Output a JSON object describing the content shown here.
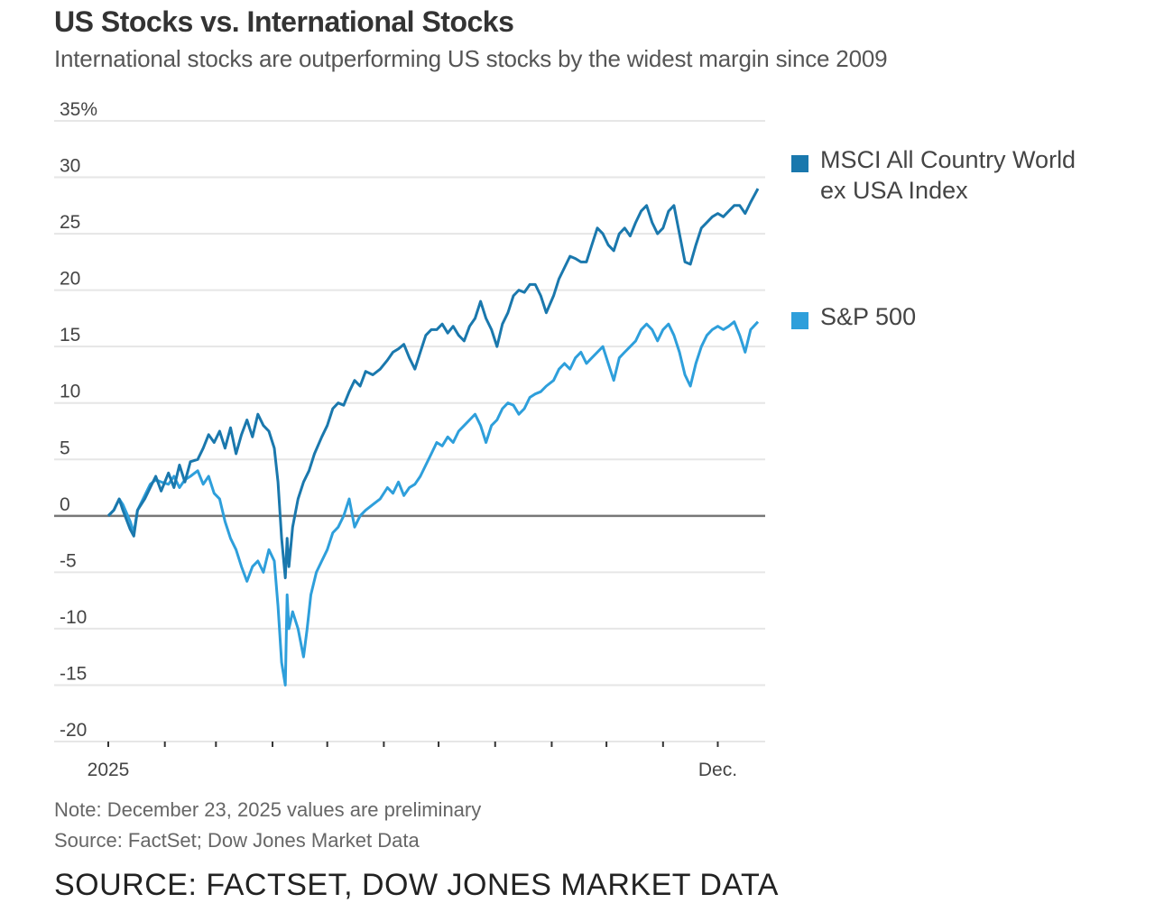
{
  "colors": {
    "msci": "#1a78ad",
    "sp500": "#2e9fdb",
    "grid": "#e6e6e6",
    "zero": "#777777"
  },
  "chart_data": {
    "type": "line",
    "title": "US Stocks vs. International Stocks",
    "subtitle": "International stocks are outperforming US stocks by the widest margin since 2009",
    "ylabel": "",
    "xlabel": "",
    "ylim": [
      -20,
      35
    ],
    "y_ticks": [
      {
        "value": 35,
        "label": "35%"
      },
      {
        "value": 30,
        "label": "30"
      },
      {
        "value": 25,
        "label": "25"
      },
      {
        "value": 20,
        "label": "20"
      },
      {
        "value": 15,
        "label": "15"
      },
      {
        "value": 10,
        "label": "10"
      },
      {
        "value": 5,
        "label": "5"
      },
      {
        "value": 0,
        "label": "0"
      },
      {
        "value": -5,
        "label": "-5"
      },
      {
        "value": -10,
        "label": "-10"
      },
      {
        "value": -15,
        "label": "-15"
      },
      {
        "value": -20,
        "label": "-20"
      }
    ],
    "x_domain": [
      "2025-01-01",
      "2025-12-24"
    ],
    "x_ticks": [
      {
        "date": "2025-01-01",
        "label": "2025"
      },
      {
        "date": "2025-02-01",
        "label": ""
      },
      {
        "date": "2025-03-01",
        "label": ""
      },
      {
        "date": "2025-04-01",
        "label": ""
      },
      {
        "date": "2025-05-01",
        "label": ""
      },
      {
        "date": "2025-06-01",
        "label": ""
      },
      {
        "date": "2025-07-01",
        "label": ""
      },
      {
        "date": "2025-08-01",
        "label": ""
      },
      {
        "date": "2025-09-01",
        "label": ""
      },
      {
        "date": "2025-10-01",
        "label": ""
      },
      {
        "date": "2025-11-01",
        "label": ""
      },
      {
        "date": "2025-12-01",
        "label": "Dec."
      }
    ],
    "series": [
      {
        "name": "MSCI All Country World ex USA Index",
        "legend_lines": [
          "MSCI All Country World",
          "ex USA Index"
        ],
        "color_key": "msci",
        "points": [
          [
            "2025-01-01",
            0
          ],
          [
            "2025-01-04",
            0.5
          ],
          [
            "2025-01-07",
            1.5
          ],
          [
            "2025-01-09",
            0.5
          ],
          [
            "2025-01-13",
            -1.2
          ],
          [
            "2025-01-15",
            -1.8
          ],
          [
            "2025-01-17",
            0.5
          ],
          [
            "2025-01-21",
            1.5
          ],
          [
            "2025-01-24",
            2.5
          ],
          [
            "2025-01-27",
            3.5
          ],
          [
            "2025-01-30",
            2.2
          ],
          [
            "2025-02-03",
            3.8
          ],
          [
            "2025-02-06",
            2.5
          ],
          [
            "2025-02-09",
            4.5
          ],
          [
            "2025-02-12",
            3
          ],
          [
            "2025-02-15",
            4.8
          ],
          [
            "2025-02-19",
            5
          ],
          [
            "2025-02-22",
            6
          ],
          [
            "2025-02-25",
            7.2
          ],
          [
            "2025-02-28",
            6.5
          ],
          [
            "2025-03-03",
            7.5
          ],
          [
            "2025-03-06",
            6
          ],
          [
            "2025-03-09",
            7.8
          ],
          [
            "2025-03-12",
            5.5
          ],
          [
            "2025-03-15",
            7.2
          ],
          [
            "2025-03-18",
            8.5
          ],
          [
            "2025-03-21",
            7
          ],
          [
            "2025-03-24",
            9
          ],
          [
            "2025-03-27",
            8
          ],
          [
            "2025-03-30",
            7.5
          ],
          [
            "2025-04-02",
            6
          ],
          [
            "2025-04-04",
            3
          ],
          [
            "2025-04-06",
            -2
          ],
          [
            "2025-04-08",
            -5.5
          ],
          [
            "2025-04-09",
            -2
          ],
          [
            "2025-04-10",
            -4.5
          ],
          [
            "2025-04-12",
            -1
          ],
          [
            "2025-04-15",
            1.5
          ],
          [
            "2025-04-18",
            3
          ],
          [
            "2025-04-21",
            4
          ],
          [
            "2025-04-24",
            5.5
          ],
          [
            "2025-04-28",
            7
          ],
          [
            "2025-05-01",
            8
          ],
          [
            "2025-05-04",
            9.5
          ],
          [
            "2025-05-07",
            10
          ],
          [
            "2025-05-10",
            9.8
          ],
          [
            "2025-05-13",
            11
          ],
          [
            "2025-05-16",
            12
          ],
          [
            "2025-05-19",
            11.5
          ],
          [
            "2025-05-22",
            12.8
          ],
          [
            "2025-05-26",
            12.5
          ],
          [
            "2025-05-30",
            13
          ],
          [
            "2025-06-03",
            13.8
          ],
          [
            "2025-06-06",
            14.5
          ],
          [
            "2025-06-09",
            14.8
          ],
          [
            "2025-06-12",
            15.2
          ],
          [
            "2025-06-15",
            14
          ],
          [
            "2025-06-18",
            13
          ],
          [
            "2025-06-21",
            14.5
          ],
          [
            "2025-06-24",
            16
          ],
          [
            "2025-06-27",
            16.5
          ],
          [
            "2025-06-30",
            16.5
          ],
          [
            "2025-07-03",
            17
          ],
          [
            "2025-07-06",
            16.2
          ],
          [
            "2025-07-09",
            16.8
          ],
          [
            "2025-07-12",
            16
          ],
          [
            "2025-07-15",
            15.5
          ],
          [
            "2025-07-18",
            16.8
          ],
          [
            "2025-07-21",
            17.5
          ],
          [
            "2025-07-24",
            19
          ],
          [
            "2025-07-27",
            17.5
          ],
          [
            "2025-07-30",
            16.5
          ],
          [
            "2025-08-02",
            15
          ],
          [
            "2025-08-05",
            17
          ],
          [
            "2025-08-08",
            18
          ],
          [
            "2025-08-11",
            19.5
          ],
          [
            "2025-08-14",
            20
          ],
          [
            "2025-08-17",
            19.8
          ],
          [
            "2025-08-20",
            20.5
          ],
          [
            "2025-08-23",
            20.5
          ],
          [
            "2025-08-26",
            19.5
          ],
          [
            "2025-08-29",
            18
          ],
          [
            "2025-09-02",
            19.5
          ],
          [
            "2025-09-05",
            21
          ],
          [
            "2025-09-08",
            22
          ],
          [
            "2025-09-11",
            23
          ],
          [
            "2025-09-14",
            22.8
          ],
          [
            "2025-09-17",
            22.5
          ],
          [
            "2025-09-20",
            22.5
          ],
          [
            "2025-09-23",
            24
          ],
          [
            "2025-09-26",
            25.5
          ],
          [
            "2025-09-29",
            25
          ],
          [
            "2025-10-02",
            24
          ],
          [
            "2025-10-05",
            23.5
          ],
          [
            "2025-10-08",
            25
          ],
          [
            "2025-10-11",
            25.5
          ],
          [
            "2025-10-14",
            24.8
          ],
          [
            "2025-10-17",
            26
          ],
          [
            "2025-10-20",
            27
          ],
          [
            "2025-10-23",
            27.5
          ],
          [
            "2025-10-26",
            26
          ],
          [
            "2025-10-29",
            25
          ],
          [
            "2025-11-01",
            25.5
          ],
          [
            "2025-11-04",
            27
          ],
          [
            "2025-11-07",
            27.5
          ],
          [
            "2025-11-10",
            25
          ],
          [
            "2025-11-13",
            22.5
          ],
          [
            "2025-11-16",
            22.3
          ],
          [
            "2025-11-19",
            24
          ],
          [
            "2025-11-22",
            25.5
          ],
          [
            "2025-11-25",
            26
          ],
          [
            "2025-11-28",
            26.5
          ],
          [
            "2025-12-01",
            26.8
          ],
          [
            "2025-12-04",
            26.5
          ],
          [
            "2025-12-07",
            27
          ],
          [
            "2025-12-10",
            27.5
          ],
          [
            "2025-12-13",
            27.5
          ],
          [
            "2025-12-16",
            26.8
          ],
          [
            "2025-12-19",
            27.8
          ],
          [
            "2025-12-23",
            29
          ]
        ]
      },
      {
        "name": "S&P 500",
        "legend_lines": [
          "S&P 500"
        ],
        "color_key": "sp500",
        "points": [
          [
            "2025-01-01",
            0
          ],
          [
            "2025-01-04",
            0.5
          ],
          [
            "2025-01-07",
            1.5
          ],
          [
            "2025-01-09",
            1
          ],
          [
            "2025-01-13",
            -0.5
          ],
          [
            "2025-01-15",
            -1.5
          ],
          [
            "2025-01-17",
            0.5
          ],
          [
            "2025-01-21",
            1.8
          ],
          [
            "2025-01-24",
            2.8
          ],
          [
            "2025-01-27",
            3.2
          ],
          [
            "2025-01-30",
            3
          ],
          [
            "2025-02-03",
            2.8
          ],
          [
            "2025-02-06",
            3.5
          ],
          [
            "2025-02-09",
            2.5
          ],
          [
            "2025-02-12",
            3.2
          ],
          [
            "2025-02-15",
            3.5
          ],
          [
            "2025-02-19",
            4
          ],
          [
            "2025-02-22",
            2.8
          ],
          [
            "2025-02-25",
            3.5
          ],
          [
            "2025-02-28",
            2
          ],
          [
            "2025-03-03",
            1.5
          ],
          [
            "2025-03-06",
            -0.5
          ],
          [
            "2025-03-09",
            -2
          ],
          [
            "2025-03-12",
            -3
          ],
          [
            "2025-03-15",
            -4.5
          ],
          [
            "2025-03-18",
            -5.8
          ],
          [
            "2025-03-21",
            -4.5
          ],
          [
            "2025-03-24",
            -4
          ],
          [
            "2025-03-27",
            -5
          ],
          [
            "2025-03-30",
            -3
          ],
          [
            "2025-04-02",
            -4
          ],
          [
            "2025-04-04",
            -8
          ],
          [
            "2025-04-06",
            -13
          ],
          [
            "2025-04-08",
            -15
          ],
          [
            "2025-04-09",
            -7
          ],
          [
            "2025-04-10",
            -10
          ],
          [
            "2025-04-12",
            -8.5
          ],
          [
            "2025-04-15",
            -10
          ],
          [
            "2025-04-18",
            -12.5
          ],
          [
            "2025-04-20",
            -10
          ],
          [
            "2025-04-22",
            -7
          ],
          [
            "2025-04-25",
            -5
          ],
          [
            "2025-04-28",
            -4
          ],
          [
            "2025-05-01",
            -3
          ],
          [
            "2025-05-04",
            -1.5
          ],
          [
            "2025-05-07",
            -1
          ],
          [
            "2025-05-10",
            0
          ],
          [
            "2025-05-13",
            1.5
          ],
          [
            "2025-05-16",
            -1
          ],
          [
            "2025-05-19",
            0
          ],
          [
            "2025-05-22",
            0.5
          ],
          [
            "2025-05-26",
            1
          ],
          [
            "2025-05-30",
            1.5
          ],
          [
            "2025-06-03",
            2.5
          ],
          [
            "2025-06-06",
            2
          ],
          [
            "2025-06-09",
            3
          ],
          [
            "2025-06-12",
            1.8
          ],
          [
            "2025-06-15",
            2.5
          ],
          [
            "2025-06-18",
            2.8
          ],
          [
            "2025-06-21",
            3.5
          ],
          [
            "2025-06-24",
            4.5
          ],
          [
            "2025-06-27",
            5.5
          ],
          [
            "2025-06-30",
            6.5
          ],
          [
            "2025-07-03",
            6.2
          ],
          [
            "2025-07-06",
            7
          ],
          [
            "2025-07-09",
            6.5
          ],
          [
            "2025-07-12",
            7.5
          ],
          [
            "2025-07-15",
            8
          ],
          [
            "2025-07-18",
            8.5
          ],
          [
            "2025-07-21",
            9
          ],
          [
            "2025-07-24",
            8
          ],
          [
            "2025-07-27",
            6.5
          ],
          [
            "2025-07-30",
            8
          ],
          [
            "2025-08-02",
            8.5
          ],
          [
            "2025-08-05",
            9.5
          ],
          [
            "2025-08-08",
            10
          ],
          [
            "2025-08-11",
            9.8
          ],
          [
            "2025-08-14",
            9
          ],
          [
            "2025-08-17",
            9.5
          ],
          [
            "2025-08-20",
            10.5
          ],
          [
            "2025-08-23",
            10.8
          ],
          [
            "2025-08-26",
            11
          ],
          [
            "2025-08-29",
            11.5
          ],
          [
            "2025-09-02",
            12
          ],
          [
            "2025-09-05",
            13
          ],
          [
            "2025-09-08",
            13.5
          ],
          [
            "2025-09-11",
            13
          ],
          [
            "2025-09-14",
            14
          ],
          [
            "2025-09-17",
            14.5
          ],
          [
            "2025-09-20",
            13.5
          ],
          [
            "2025-09-23",
            14
          ],
          [
            "2025-09-26",
            14.5
          ],
          [
            "2025-09-29",
            15
          ],
          [
            "2025-10-02",
            13.5
          ],
          [
            "2025-10-05",
            12
          ],
          [
            "2025-10-08",
            14
          ],
          [
            "2025-10-11",
            14.5
          ],
          [
            "2025-10-14",
            15
          ],
          [
            "2025-10-17",
            15.5
          ],
          [
            "2025-10-20",
            16.5
          ],
          [
            "2025-10-23",
            17
          ],
          [
            "2025-10-26",
            16.5
          ],
          [
            "2025-10-29",
            15.5
          ],
          [
            "2025-11-01",
            16.5
          ],
          [
            "2025-11-04",
            17
          ],
          [
            "2025-11-07",
            16
          ],
          [
            "2025-11-10",
            14.5
          ],
          [
            "2025-11-13",
            12.5
          ],
          [
            "2025-11-16",
            11.5
          ],
          [
            "2025-11-19",
            13.5
          ],
          [
            "2025-11-22",
            15
          ],
          [
            "2025-11-25",
            16
          ],
          [
            "2025-11-28",
            16.5
          ],
          [
            "2025-12-01",
            16.8
          ],
          [
            "2025-12-04",
            16.5
          ],
          [
            "2025-12-07",
            16.8
          ],
          [
            "2025-12-10",
            17.2
          ],
          [
            "2025-12-13",
            16
          ],
          [
            "2025-12-16",
            14.5
          ],
          [
            "2025-12-19",
            16.5
          ],
          [
            "2025-12-23",
            17.2
          ]
        ]
      }
    ]
  },
  "note": "Note: December 23, 2025 values are preliminary",
  "source": "Source: FactSet; Dow Jones Market Data",
  "footer": "SOURCE: FACTSET, DOW JONES MARKET DATA"
}
